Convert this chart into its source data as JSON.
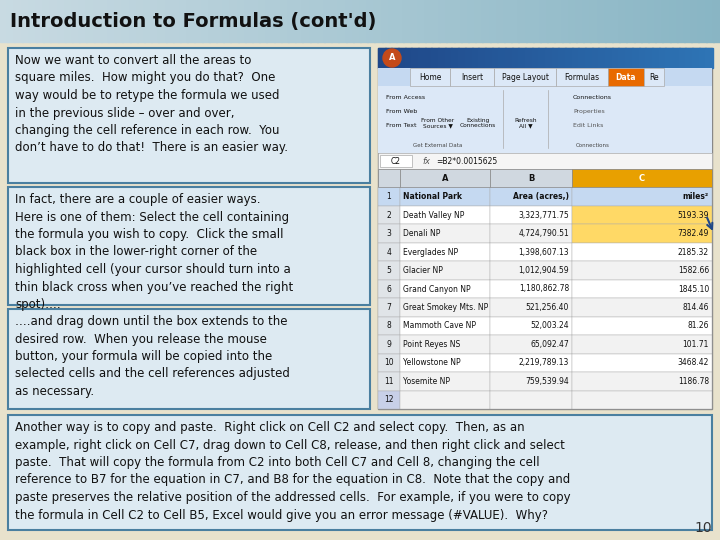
{
  "title": "Introduction to Formulas (cont'd)",
  "title_color": "#111111",
  "bg_color": "#e8e2cc",
  "box_bg": "#ddeaf2",
  "box_border": "#4a7fa0",
  "box1_text": "Now we want to convert all the areas to\nsquare miles.  How might you do that?  One\nway would be to retype the formula we used\nin the previous slide – over and over,\nchanging the cell reference in each row.  You\ndon’t have to do that!  There is an easier way.",
  "box2_text": "In fact, there are a couple of easier ways.\nHere is one of them: Select the cell containing\nthe formula you wish to copy.  Click the small\nblack box in the lower-right corner of the\nhighlighted cell (your cursor should turn into a\nthin black cross when you’ve reached the right\nspot)….",
  "box3_text": "….and drag down until the box extends to the\ndesired row.  When you release the mouse\nbutton, your formula will be copied into the\nselected cells and the cell references adjusted\nas necessary.",
  "box4_text": "Another way is to copy and paste.  Right click on Cell C2 and select copy.  Then, as an\nexample, right click on Cell C7, drag down to Cell C8, release, and then right click and select\npaste.  That will copy the formula from C2 into both Cell C7 and Cell 8, changing the cell\nreference to B7 for the equation in C7, and B8 for the equation in C8.  Note that the copy and\npaste preserves the relative position of the addressed cells.  For example, if you were to copy\nthe formula in Cell C2 to Cell B5, Excel would give you an error message (#VALUE).  Why?",
  "page_num": "10",
  "text_color": "#111111",
  "park_data": [
    [
      "National Park",
      "Area (acres,)",
      "miles²"
    ],
    [
      "Death Valley NP",
      "3,323,771.75",
      "5193.39"
    ],
    [
      "Denali NP",
      "4,724,790.51",
      "7382.49"
    ],
    [
      "Everglades NP",
      "1,398,607.13",
      "2185.32"
    ],
    [
      "Glacier NP",
      "1,012,904.59",
      "1582.66"
    ],
    [
      "Grand Canyon NP",
      "1,180,862.78",
      "1845.10"
    ],
    [
      "Great Smokey Mts. NP",
      "521,256.40",
      "814.46"
    ],
    [
      "Mammoth Cave NP",
      "52,003.24",
      "81.26"
    ],
    [
      "Point Reyes NS",
      "65,092.47",
      "101.71"
    ],
    [
      "Yellowstone NP",
      "2,219,789.13",
      "3468.42"
    ],
    [
      "Yosemite NP",
      "759,539.94",
      "1186.78"
    ],
    [
      "",
      "",
      ""
    ]
  ]
}
